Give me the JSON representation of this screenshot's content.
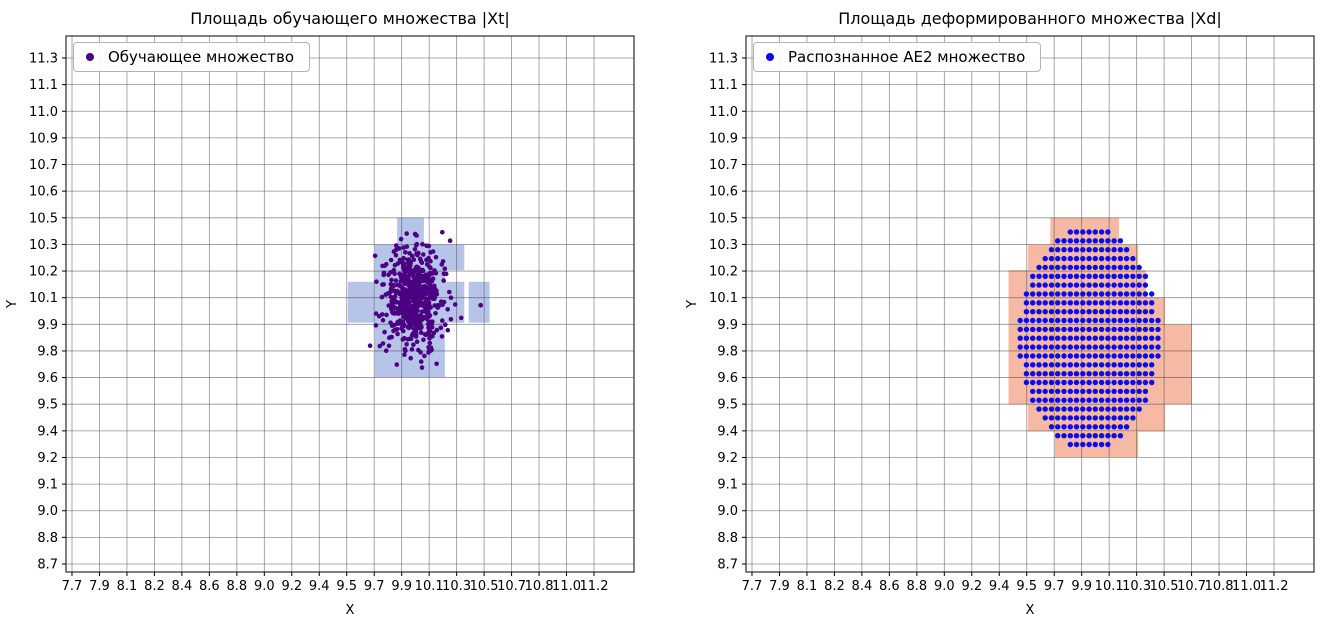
{
  "figure": {
    "background": "#ffffff"
  },
  "chart_data": [
    {
      "type": "scatter",
      "title": "Площадь обучающего множества |Xt|",
      "xlabel": "X",
      "ylabel": "Y",
      "legend": {
        "label": "Обучающее множество",
        "position": "upper-left"
      },
      "grid": true,
      "marker_color": "#4B0082",
      "marker_radius": 2.3,
      "region_color": "#b7c4e9",
      "x_ticks": [
        "7.7",
        "7.9",
        "8.1",
        "8.2",
        "8.4",
        "8.6",
        "8.8",
        "9.0",
        "9.2",
        "9.4",
        "9.5",
        "9.7",
        "9.9",
        "10.1",
        "10.3",
        "10.5",
        "10.7",
        "10.8",
        "11.0",
        "11.2"
      ],
      "y_ticks": [
        "8.7",
        "8.8",
        "9.0",
        "9.1",
        "9.2",
        "9.4",
        "9.5",
        "9.6",
        "9.8",
        "9.9",
        "10.1",
        "10.2",
        "10.3",
        "10.5",
        "10.6",
        "10.7",
        "10.9",
        "11.0",
        "11.1",
        "11.3"
      ],
      "x_tick_start": 7.7,
      "x_tick_step": 0.1842105,
      "y_tick_start": 8.7,
      "y_tick_step": 0.1368421,
      "regions": [
        {
          "x1": 9.88,
          "y1": 10.34,
          "x2": 10.06,
          "y2": 10.48
        },
        {
          "x1": 9.73,
          "y1": 10.21,
          "x2": 10.33,
          "y2": 10.34
        },
        {
          "x1": 9.73,
          "y1": 9.66,
          "x2": 10.2,
          "y2": 10.21
        },
        {
          "x1": 10.2,
          "y1": 9.94,
          "x2": 10.33,
          "y2": 10.15
        },
        {
          "x1": 9.55,
          "y1": 9.94,
          "x2": 9.73,
          "y2": 10.15
        },
        {
          "x1": 10.36,
          "y1": 9.94,
          "x2": 10.5,
          "y2": 10.15
        }
      ],
      "cluster": {
        "kind": "gaussian",
        "count": 600,
        "center": [
          9.99,
          10.06
        ],
        "std": [
          0.095,
          0.13
        ],
        "seed": 11,
        "clip": [
          9.62,
          9.66,
          10.32,
          10.46
        ]
      },
      "extra_points": [
        [
          10.44,
          10.03
        ]
      ]
    },
    {
      "type": "scatter",
      "title": "Площадь деформированного множества |Xd|",
      "xlabel": "X",
      "ylabel": "Y",
      "legend": {
        "label": "Распознанное АЕ2 множество",
        "position": "upper-left"
      },
      "grid": true,
      "marker_color": "#0b0bee",
      "marker_radius": 2.7,
      "region_color": "#f6b9a3",
      "x_ticks": [
        "7.7",
        "7.9",
        "8.1",
        "8.2",
        "8.4",
        "8.6",
        "8.8",
        "9.0",
        "9.2",
        "9.4",
        "9.5",
        "9.7",
        "9.9",
        "10.1",
        "10.3",
        "10.5",
        "10.7",
        "10.8",
        "11.0",
        "11.2"
      ],
      "y_ticks": [
        "8.7",
        "8.8",
        "9.0",
        "9.1",
        "9.2",
        "9.4",
        "9.5",
        "9.6",
        "9.8",
        "9.9",
        "10.1",
        "10.2",
        "10.3",
        "10.5",
        "10.6",
        "10.7",
        "10.9",
        "11.0",
        "11.1",
        "11.3"
      ],
      "x_tick_start": 7.7,
      "x_tick_step": 0.1842105,
      "y_tick_start": 8.7,
      "y_tick_step": 0.1368421,
      "regions": [
        {
          "x1": 9.7,
          "y1": 10.34,
          "x2": 10.16,
          "y2": 10.48
        },
        {
          "x1": 9.55,
          "y1": 10.21,
          "x2": 10.29,
          "y2": 10.34
        },
        {
          "x1": 9.42,
          "y1": 10.07,
          "x2": 10.34,
          "y2": 10.21
        },
        {
          "x1": 9.42,
          "y1": 9.93,
          "x2": 10.47,
          "y2": 10.07
        },
        {
          "x1": 9.42,
          "y1": 9.52,
          "x2": 10.65,
          "y2": 9.93
        },
        {
          "x1": 9.55,
          "y1": 9.38,
          "x2": 10.47,
          "y2": 9.52
        },
        {
          "x1": 9.73,
          "y1": 9.25,
          "x2": 10.29,
          "y2": 9.38
        }
      ],
      "cluster": {
        "kind": "ellipse-grid",
        "center": [
          9.96,
          9.86
        ],
        "rx": 0.47,
        "ry": 0.575,
        "step": [
          0.042,
          0.0455
        ]
      }
    }
  ]
}
